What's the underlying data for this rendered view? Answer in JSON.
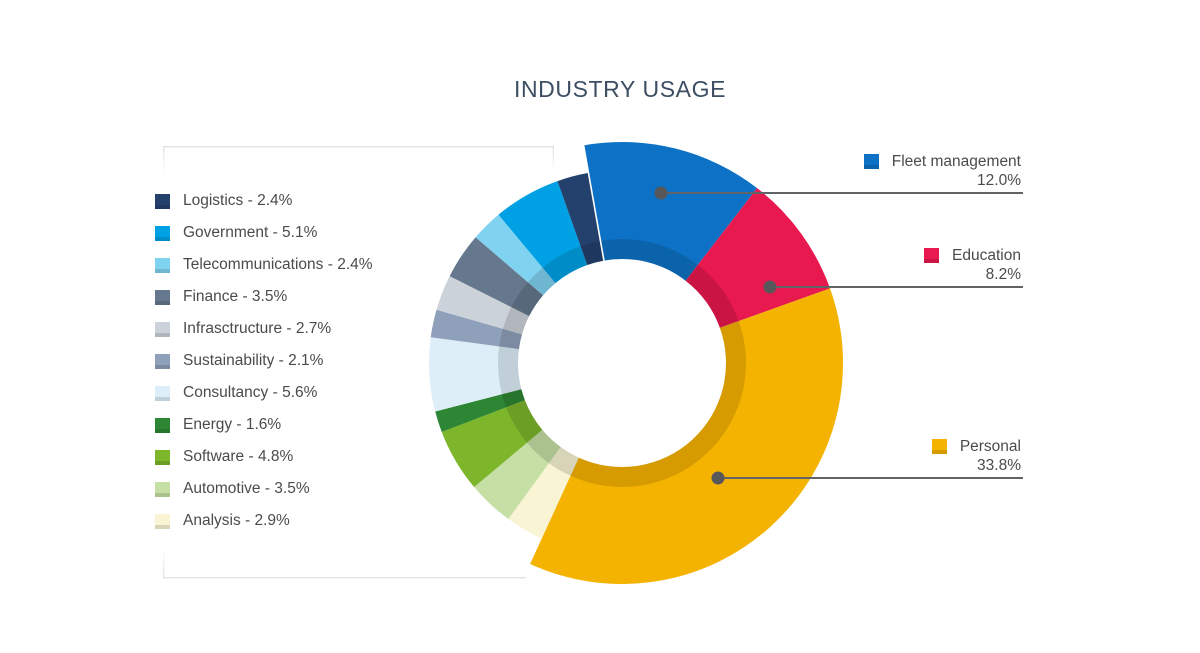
{
  "title": "INDUSTRY USAGE",
  "chart_data": {
    "type": "pie",
    "subtype": "donut",
    "title": "INDUSTRY USAGE",
    "unit": "percent",
    "start_angle_deg": -10,
    "direction": "clockwise",
    "legend_position": "left",
    "callout_position": "right",
    "slices": [
      {
        "label": "Fleet management",
        "value": 12.0,
        "value_text": "12.0%",
        "color": "#0d72c6",
        "prominent": true,
        "callout": true
      },
      {
        "label": "Education",
        "value": 8.2,
        "value_text": "8.2%",
        "color": "#e8194f",
        "prominent": true,
        "callout": true
      },
      {
        "label": "Personal",
        "value": 33.8,
        "value_text": "33.8%",
        "color": "#f5b301",
        "prominent": true,
        "callout": true
      },
      {
        "label": "Analysis",
        "value": 2.9,
        "value_text": "2.9%",
        "color": "#f9f4d3",
        "prominent": false,
        "callout": false
      },
      {
        "label": "Automotive",
        "value": 3.5,
        "value_text": "3.5%",
        "color": "#c5dfa5",
        "prominent": false,
        "callout": false
      },
      {
        "label": "Software",
        "value": 4.8,
        "value_text": "4.8%",
        "color": "#7db52b",
        "prominent": false,
        "callout": false
      },
      {
        "label": "Energy",
        "value": 1.6,
        "value_text": "1.6%",
        "color": "#2d8634",
        "prominent": false,
        "callout": false
      },
      {
        "label": "Consultancy",
        "value": 5.6,
        "value_text": "5.6%",
        "color": "#ddeef8",
        "prominent": false,
        "callout": false
      },
      {
        "label": "Sustainability",
        "value": 2.1,
        "value_text": "2.1%",
        "color": "#8fa0bb",
        "prominent": false,
        "callout": false
      },
      {
        "label": "Infrasctructure",
        "value": 2.7,
        "value_text": "2.7%",
        "color": "#ccd2da",
        "prominent": false,
        "callout": false
      },
      {
        "label": "Finance",
        "value": 3.5,
        "value_text": "3.5%",
        "color": "#66788e",
        "prominent": false,
        "callout": false
      },
      {
        "label": "Telecommunications",
        "value": 2.4,
        "value_text": "2.4%",
        "color": "#80d2f1",
        "prominent": false,
        "callout": false
      },
      {
        "label": "Government",
        "value": 5.1,
        "value_text": "5.1%",
        "color": "#00a1e4",
        "prominent": false,
        "callout": false
      },
      {
        "label": "Logistics",
        "value": 2.4,
        "value_text": "2.4%",
        "color": "#24416e",
        "prominent": false,
        "callout": false
      }
    ]
  },
  "legend": {
    "items": [
      {
        "text": "Logistics - 2.4%",
        "color": "#24416e"
      },
      {
        "text": "Government - 5.1%",
        "color": "#00a1e4"
      },
      {
        "text": "Telecommunications - 2.4%",
        "color": "#80d2f1"
      },
      {
        "text": "Finance - 3.5%",
        "color": "#66788e"
      },
      {
        "text": "Infrasctructure - 2.7%",
        "color": "#ccd2da"
      },
      {
        "text": "Sustainability - 2.1%",
        "color": "#8fa0bb"
      },
      {
        "text": "Consultancy - 5.6%",
        "color": "#ddeef8"
      },
      {
        "text": "Energy - 1.6%",
        "color": "#2d8634"
      },
      {
        "text": "Software - 4.8%",
        "color": "#7db52b"
      },
      {
        "text": "Automotive - 3.5%",
        "color": "#c5dfa5"
      },
      {
        "text": "Analysis - 2.9%",
        "color": "#f9f4d3"
      }
    ]
  },
  "callouts": [
    {
      "label": "Fleet management",
      "value_text": "12.0%",
      "color": "#0d72c6"
    },
    {
      "label": "Education",
      "value_text": "8.2%",
      "color": "#e8194f"
    },
    {
      "label": "Personal",
      "value_text": "33.8%",
      "color": "#f5b301"
    }
  ],
  "colors": {
    "title_text": "#3d4e63",
    "body_text": "#4b4b4d",
    "callout_line": "#626366",
    "callout_dot": "#58585a",
    "frame_line": "#e1e2e4"
  }
}
